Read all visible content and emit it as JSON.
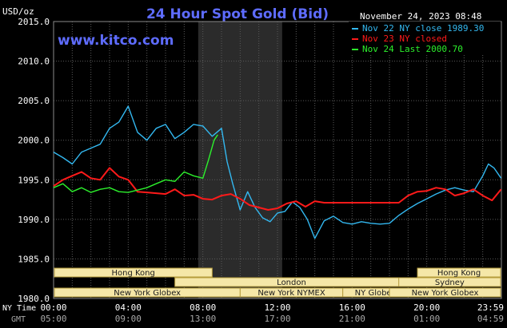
{
  "header": {
    "units": "USD/oz",
    "title": "24 Hour Spot Gold (Bid)",
    "timestamp": "November 24, 2023 08:48",
    "watermark": "www.kitco.com"
  },
  "colors": {
    "background": "#000000",
    "title": "#5e6cff",
    "watermark": "#5e6cff",
    "grid": "#5a5a5a",
    "axis_text": "#ffffff",
    "gmt_text": "#a8a8a8",
    "london_shade": "#2b2b2b",
    "nov22": "#33b8f0",
    "nov23": "#ff1a1a",
    "nov24": "#2cf02c",
    "session_fill": "#f5e7a8",
    "session_border": "#b59c3c",
    "session_text": "#1a1a1a"
  },
  "sessions": [
    {
      "name": "Hong Kong",
      "start_h": 0,
      "end_h": 8.5,
      "row": 1
    },
    {
      "name": "London",
      "start_h": 6.5,
      "end_h": 19,
      "row": 2
    },
    {
      "name": "New York Globex",
      "start_h": 0,
      "end_h": 10,
      "row": 3
    },
    {
      "name": "New York NYMEX",
      "start_h": 10,
      "end_h": 15.5,
      "row": 3
    },
    {
      "name": "NY Globex",
      "start_h": 15.5,
      "end_h": 19,
      "row": 3
    },
    {
      "name": "Hong Kong",
      "start_h": 19.5,
      "end_h": 28,
      "row": 1
    },
    {
      "name": "Sydney",
      "start_h": 18.5,
      "end_h": 28,
      "row": 2
    },
    {
      "name": "New York Globex",
      "start_h": 18,
      "end_h": 28,
      "row": 3
    }
  ],
  "chart_data": {
    "type": "line",
    "title": "24 Hour Spot Gold (Bid)",
    "ylabel": "USD/oz",
    "ylim": [
      1980,
      2015
    ],
    "yticks": [
      1980,
      1985,
      1990,
      1995,
      2000,
      2005,
      2010,
      2015
    ],
    "ytick_labels": [
      "1980.0",
      "1985.0",
      "1990.0",
      "1995.0",
      "2000.0",
      "2005.0",
      "2010.0",
      "2015.0"
    ],
    "xlim_hours": [
      0,
      24
    ],
    "x_ticks": [
      {
        "h": 0,
        "ny": "00:00",
        "gmt": "05:00"
      },
      {
        "h": 4,
        "ny": "04:00",
        "gmt": "09:00"
      },
      {
        "h": 8,
        "ny": "08:00",
        "gmt": "13:00"
      },
      {
        "h": 12,
        "ny": "12:00",
        "gmt": "17:00"
      },
      {
        "h": 16,
        "ny": "16:00",
        "gmt": "21:00"
      },
      {
        "h": 20,
        "ny": "20:00",
        "gmt": "01:00"
      },
      {
        "h": 23.983,
        "ny": "23:59",
        "gmt": "04:59"
      }
    ],
    "row_labels": {
      "ny": "NY Time",
      "gmt": "GMT"
    },
    "shaded_band_hours": [
      7.75,
      12.25
    ],
    "grid": true,
    "legend_placement": "top-right",
    "series": [
      {
        "name": "Nov 22 NY close 1989.30",
        "color": "#33b8f0",
        "x": [
          0,
          0.5,
          1,
          1.5,
          2,
          2.5,
          3,
          3.5,
          4,
          4.5,
          5,
          5.5,
          6,
          6.5,
          7,
          7.5,
          8,
          8.5,
          9,
          9.3,
          9.6,
          10,
          10.4,
          10.8,
          11.2,
          11.6,
          12,
          12.4,
          12.8,
          13.2,
          13.6,
          14,
          14.5,
          15,
          15.5,
          16,
          16.5,
          17,
          17.5,
          18,
          18.5,
          19,
          19.5,
          20,
          20.5,
          21,
          21.5,
          22,
          22.5,
          23,
          23.3,
          23.6,
          23.983
        ],
        "y": [
          1998.5,
          1997.8,
          1997,
          1998.5,
          1999,
          1999.5,
          2001.5,
          2002.3,
          2004.3,
          2001,
          2000,
          2001.5,
          2002,
          2000.2,
          2001,
          2002,
          2001.8,
          2000.5,
          2001.5,
          1997.3,
          1994.5,
          1991.2,
          1993.5,
          1991.5,
          1990.2,
          1989.7,
          1990.8,
          1991,
          1992.2,
          1991.5,
          1990,
          1987.6,
          1989.8,
          1990.4,
          1989.6,
          1989.4,
          1989.7,
          1989.5,
          1989.4,
          1989.5,
          1990.5,
          1991.3,
          1992,
          1992.6,
          1993.2,
          1993.7,
          1994,
          1993.7,
          1993.5,
          1995.5,
          1997,
          1996.5,
          1995.2
        ]
      },
      {
        "name": "Nov 23 NY closed",
        "color": "#ff1a1a",
        "x": [
          0,
          0.5,
          1,
          1.5,
          2,
          2.5,
          3,
          3.5,
          4,
          4.5,
          5,
          5.5,
          6,
          6.5,
          7,
          7.5,
          8,
          8.5,
          9,
          9.5,
          10,
          10.5,
          11,
          11.5,
          12,
          12.5,
          13,
          13.5,
          14,
          14.5,
          15,
          15.5,
          16,
          16.5,
          17,
          17.5,
          18,
          18.5,
          19,
          19.5,
          20,
          20.5,
          21,
          21.5,
          22,
          22.5,
          23,
          23.5,
          23.983
        ],
        "y": [
          1994.2,
          1995,
          1995.5,
          1996,
          1995.2,
          1995,
          1996.5,
          1995.4,
          1995,
          1993.5,
          1993.4,
          1993.3,
          1993.2,
          1993.8,
          1993,
          1993.1,
          1992.6,
          1992.5,
          1993,
          1993.2,
          1992.6,
          1991.8,
          1991.5,
          1991.2,
          1991.4,
          1992,
          1992.3,
          1991.6,
          1992.3,
          1992.1,
          1992.1,
          1992.1,
          1992.1,
          1992.1,
          1992.1,
          1992.1,
          1992.1,
          1992.1,
          1993,
          1993.5,
          1993.6,
          1994,
          1993.8,
          1993,
          1993.3,
          1993.8,
          1993,
          1992.4,
          1993.8
        ]
      },
      {
        "name": "Nov 24 Last 2000.70",
        "color": "#2cf02c",
        "x": [
          0,
          0.5,
          1,
          1.5,
          2,
          2.5,
          3,
          3.5,
          4,
          4.5,
          5,
          5.5,
          6,
          6.5,
          7,
          7.5,
          8,
          8.3,
          8.6,
          8.8
        ],
        "y": [
          1994,
          1994.5,
          1993.5,
          1994,
          1993.4,
          1993.8,
          1994,
          1993.5,
          1993.4,
          1993.7,
          1994,
          1994.5,
          1995,
          1994.8,
          1996,
          1995.5,
          1995.2,
          1997.5,
          2000,
          2000.7
        ]
      }
    ]
  }
}
